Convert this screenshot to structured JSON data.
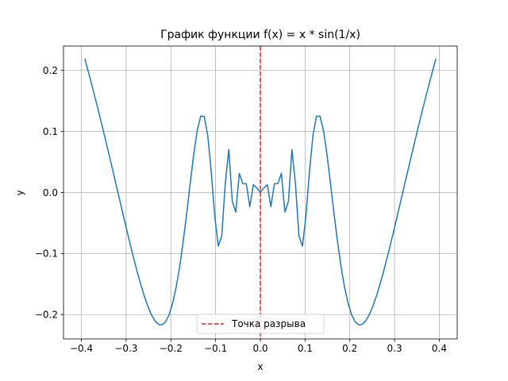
{
  "chart_data": {
    "type": "line",
    "title": "График функции f(x) = x * sin(1/x)",
    "xlabel": "x",
    "ylabel": "y",
    "xlim": [
      -0.44,
      0.44
    ],
    "ylim": [
      -0.24,
      0.24
    ],
    "xticks": [
      -0.4,
      -0.3,
      -0.2,
      -0.1,
      0.0,
      0.1,
      0.2,
      0.3,
      0.4
    ],
    "xtick_labels": [
      "−0.4",
      "−0.3",
      "−0.2",
      "−0.1",
      "0.0",
      "0.1",
      "0.2",
      "0.3",
      "0.4"
    ],
    "yticks": [
      -0.2,
      -0.1,
      0.0,
      0.1,
      0.2
    ],
    "ytick_labels": [
      "−0.2",
      "−0.1",
      "0.0",
      "0.1",
      "0.2"
    ],
    "grid": true,
    "legend": {
      "placement": "lower-center",
      "entries": [
        "Точка разрыва"
      ]
    },
    "series": [
      {
        "function": "x * sin(1/x)",
        "x_range": [
          -0.392,
          0.392
        ],
        "sample_count": 101,
        "color": "#1f77b4"
      },
      {
        "name": "Точка разрыва",
        "type": "vline",
        "x": 0.0,
        "style": "dashed",
        "color": "#d62728"
      }
    ]
  }
}
